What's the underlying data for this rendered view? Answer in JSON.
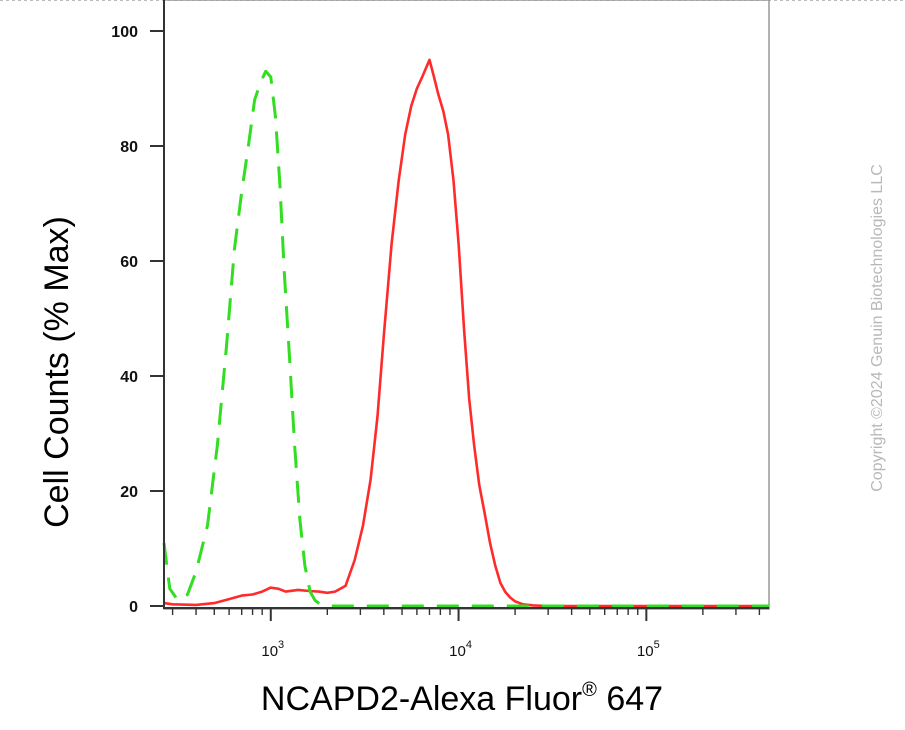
{
  "chart_data": {
    "type": "line",
    "xlabel_main": "NCAPD2-Alexa Fluor",
    "xlabel_sup": "®",
    "xlabel_end": " 647",
    "ylabel": "Cell Counts (% Max)",
    "xscale": "log",
    "xlim": [
      270,
      450000
    ],
    "ylim": [
      0,
      103
    ],
    "yticks": [
      0,
      20,
      40,
      60,
      80,
      100
    ],
    "ytick_labels": [
      "0",
      "20",
      "40",
      "60",
      "80",
      "100"
    ],
    "xticks": [
      {
        "value": 1000,
        "base": "10",
        "exp": "3"
      },
      {
        "value": 10000,
        "base": "10",
        "exp": "4"
      },
      {
        "value": 100000,
        "base": "10",
        "exp": "5"
      }
    ],
    "grid": false,
    "legend": "none",
    "series": [
      {
        "color": "#ff2b2b",
        "style": "solid",
        "x": [
          270,
          300,
          400,
          500,
          600,
          700,
          800,
          900,
          1000,
          1100,
          1200,
          1400,
          1600,
          1800,
          2000,
          2200,
          2500,
          2800,
          3100,
          3400,
          3700,
          4000,
          4400,
          4800,
          5200,
          5600,
          6000,
          6400,
          6800,
          7000,
          7400,
          7800,
          8300,
          8800,
          9400,
          10000,
          10700,
          11400,
          12100,
          12900,
          13800,
          14700,
          15700,
          16700,
          17700,
          18800,
          20000,
          22000,
          25000,
          30000,
          50000,
          100000,
          200000,
          450000
        ],
        "y": [
          0.5,
          0.3,
          0.2,
          0.5,
          1.2,
          1.8,
          2.0,
          2.5,
          3.2,
          3.0,
          2.5,
          2.8,
          2.6,
          2.5,
          2.3,
          2.5,
          3.5,
          8,
          14,
          22,
          33,
          47,
          63,
          74,
          82,
          87,
          90,
          92,
          94,
          95,
          92,
          89,
          86,
          82,
          74,
          63,
          48,
          36,
          28,
          21,
          16,
          11,
          7,
          4,
          2.5,
          1.5,
          0.8,
          0.3,
          0.1,
          0,
          0,
          0,
          0,
          0
        ]
      },
      {
        "color": "#33dd22",
        "style": "dashed",
        "x": [
          270,
          290,
          320,
          360,
          400,
          460,
          520,
          580,
          640,
          700,
          760,
          820,
          880,
          940,
          1000,
          1060,
          1120,
          1180,
          1260,
          1340,
          1430,
          1520,
          1620,
          1720,
          1830,
          1950,
          2100,
          2400,
          3000,
          5000,
          10000,
          50000,
          200000,
          450000
        ],
        "y": [
          11,
          3,
          1,
          2,
          6,
          14,
          28,
          45,
          62,
          72,
          80,
          88,
          91,
          93,
          92,
          85,
          73,
          58,
          43,
          28,
          15,
          7,
          2.5,
          1,
          0.3,
          0.1,
          0,
          0,
          0,
          0,
          0,
          0,
          0,
          0
        ]
      }
    ]
  },
  "watermark": "Copyright ©2024 Genuin Biotechnologies LLC"
}
